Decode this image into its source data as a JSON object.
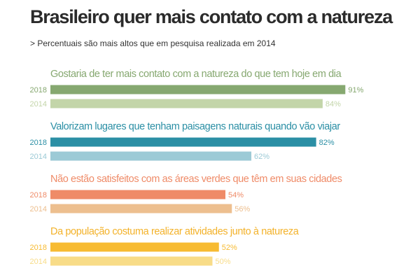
{
  "chart_data": {
    "type": "bar",
    "orientation": "horizontal",
    "title": "Brasileiro quer mais contato com a natureza",
    "subtitle": "> Percentuais são mais altos que em pesquisa realizada em 2014",
    "value_suffix": "%",
    "xlim": [
      0,
      100
    ],
    "grid": false,
    "groups": [
      {
        "title": "Gostaria de ter mais contato com a natureza do que tem hoje em dia",
        "color": "#86a870",
        "rows": [
          {
            "year": "2018",
            "value": 91,
            "color": "#86a870"
          },
          {
            "year": "2014",
            "value": 84,
            "color": "#c3d5a9"
          }
        ]
      },
      {
        "title": "Valorizam lugares que tenham paisagens naturais quando vão viajar",
        "color": "#2b8fa5",
        "rows": [
          {
            "year": "2018",
            "value": 82,
            "color": "#2b8fa5"
          },
          {
            "year": "2014",
            "value": 62,
            "color": "#9ccad6"
          }
        ]
      },
      {
        "title": "Não estão satisfeitos com as áreas verdes que têm em suas cidades",
        "color": "#ef8b68",
        "rows": [
          {
            "year": "2018",
            "value": 54,
            "color": "#ef8b68"
          },
          {
            "year": "2014",
            "value": 56,
            "color": "#edbf8f"
          }
        ]
      },
      {
        "title": "Da população costuma realizar atividades junto à natureza",
        "color": "#f3b22a",
        "rows": [
          {
            "year": "2018",
            "value": 52,
            "color": "#f7bb32"
          },
          {
            "year": "2014",
            "value": 50,
            "color": "#f8dc88"
          }
        ]
      }
    ]
  }
}
